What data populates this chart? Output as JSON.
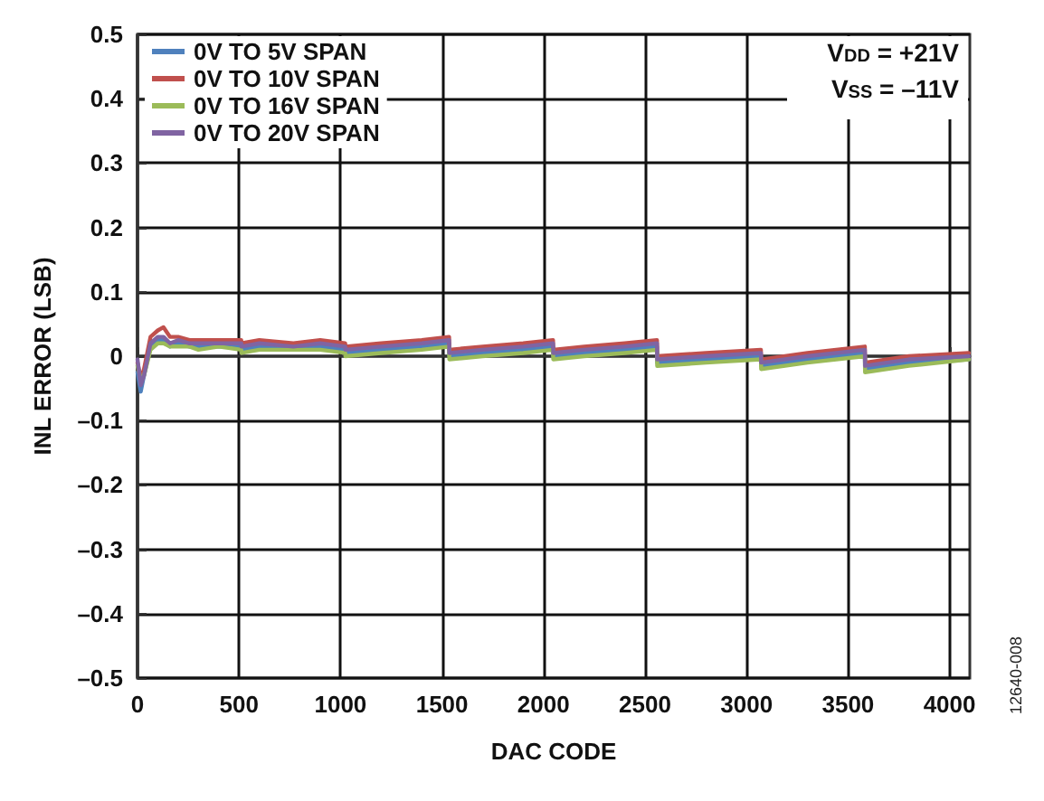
{
  "chart_data": {
    "type": "line",
    "xlabel": "DAC CODE",
    "ylabel": "INL ERROR (LSB)",
    "x": [
      0,
      16,
      32,
      64,
      100,
      128,
      160,
      200,
      256,
      300,
      400,
      511,
      512,
      600,
      768,
      900,
      1023,
      1024,
      1200,
      1400,
      1535,
      1536,
      1700,
      1900,
      2047,
      2048,
      2200,
      2400,
      2559,
      2560,
      2800,
      3071,
      3072,
      3300,
      3583,
      3584,
      3800,
      4095
    ],
    "series": [
      {
        "name": "0V TO 5V SPAN",
        "color": "#4f81bd",
        "values": [
          -0.025,
          -0.055,
          -0.03,
          0.015,
          0.025,
          0.025,
          0.015,
          0.02,
          0.015,
          0.015,
          0.015,
          0.015,
          0.01,
          0.015,
          0.01,
          0.015,
          0.01,
          0.005,
          0.01,
          0.015,
          0.02,
          0.0,
          0.005,
          0.01,
          0.015,
          0.0,
          0.005,
          0.01,
          0.015,
          -0.01,
          -0.005,
          0.0,
          -0.015,
          -0.005,
          0.005,
          -0.02,
          -0.01,
          -0.005
        ]
      },
      {
        "name": "0V TO 10V SPAN",
        "color": "#c0504d",
        "values": [
          -0.01,
          -0.035,
          -0.02,
          0.03,
          0.04,
          0.045,
          0.03,
          0.03,
          0.025,
          0.025,
          0.025,
          0.025,
          0.02,
          0.025,
          0.02,
          0.025,
          0.02,
          0.015,
          0.02,
          0.025,
          0.03,
          0.01,
          0.015,
          0.02,
          0.025,
          0.01,
          0.015,
          0.02,
          0.025,
          0.0,
          0.005,
          0.01,
          -0.005,
          0.005,
          0.015,
          -0.01,
          0.0,
          0.005
        ]
      },
      {
        "name": "0V TO 16V SPAN",
        "color": "#9bbb59",
        "values": [
          -0.015,
          -0.035,
          -0.03,
          0.01,
          0.02,
          0.02,
          0.015,
          0.015,
          0.015,
          0.01,
          0.015,
          0.01,
          0.005,
          0.01,
          0.01,
          0.01,
          0.005,
          0.0,
          0.005,
          0.01,
          0.015,
          -0.005,
          0.0,
          0.005,
          0.01,
          -0.005,
          0.0,
          0.005,
          0.01,
          -0.015,
          -0.01,
          -0.005,
          -0.02,
          -0.01,
          0.0,
          -0.025,
          -0.015,
          -0.005
        ]
      },
      {
        "name": "0V TO 20V SPAN",
        "color": "#8064a2",
        "values": [
          -0.005,
          -0.045,
          -0.03,
          0.02,
          0.03,
          0.03,
          0.02,
          0.025,
          0.02,
          0.02,
          0.02,
          0.02,
          0.015,
          0.02,
          0.015,
          0.02,
          0.015,
          0.01,
          0.015,
          0.02,
          0.025,
          0.005,
          0.01,
          0.015,
          0.02,
          0.005,
          0.01,
          0.015,
          0.02,
          -0.005,
          0.0,
          0.005,
          -0.01,
          0.0,
          0.01,
          -0.015,
          -0.005,
          0.0
        ]
      }
    ],
    "xlim": [
      0,
      4100
    ],
    "xticks": [
      0,
      500,
      1000,
      1500,
      2000,
      2500,
      3000,
      3500,
      4000
    ],
    "ylim": [
      -0.5,
      0.5
    ],
    "yticks": [
      {
        "value": -0.5,
        "label": "–0.5"
      },
      {
        "value": -0.4,
        "label": "–0.4"
      },
      {
        "value": -0.3,
        "label": "–0.3"
      },
      {
        "value": -0.2,
        "label": "–0.2"
      },
      {
        "value": -0.1,
        "label": "–0.1"
      },
      0,
      0.1,
      0.2,
      0.3,
      0.4,
      0.5
    ],
    "grid": true,
    "legend": "top left",
    "marker": "none",
    "line_style": "solid",
    "annotations": [
      "V$_{DD}$ = +21V",
      "V$_{SS}$ = –11V",
      "12640-008"
    ]
  }
}
